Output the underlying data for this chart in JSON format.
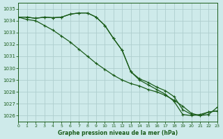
{
  "title": "Graphe pression niveau de la mer (hPa)",
  "background_color": "#ceeaea",
  "grid_color": "#aecece",
  "line_color": "#1a5c1a",
  "xlim": [
    0,
    23
  ],
  "ylim": [
    1025.5,
    1035.5
  ],
  "yticks": [
    1026,
    1027,
    1028,
    1029,
    1030,
    1031,
    1032,
    1033,
    1034,
    1035
  ],
  "xticks": [
    0,
    1,
    2,
    3,
    4,
    5,
    6,
    7,
    8,
    9,
    10,
    11,
    12,
    13,
    14,
    15,
    16,
    17,
    18,
    19,
    20,
    21,
    22,
    23
  ],
  "series1_x": [
    0,
    1,
    2,
    3,
    4,
    5,
    6,
    7,
    8,
    9,
    10,
    11,
    12,
    13,
    14,
    15,
    16,
    17,
    18,
    19,
    20,
    21,
    22,
    23
  ],
  "series1_y": [
    1034.3,
    1034.3,
    1034.2,
    1034.3,
    1034.25,
    1034.3,
    1034.55,
    1034.65,
    1034.65,
    1034.3,
    1033.6,
    1032.5,
    1031.5,
    1029.7,
    1029.0,
    1028.6,
    1028.2,
    1027.8,
    1027.2,
    1026.1,
    1026.0,
    1026.1,
    1026.3,
    1026.4
  ],
  "series2_x": [
    0,
    1,
    2,
    3,
    4,
    5,
    6,
    7,
    8,
    9,
    10,
    11,
    12,
    13,
    14,
    15,
    16,
    17,
    18,
    19,
    20,
    21,
    22,
    23
  ],
  "series2_y": [
    1034.3,
    1034.1,
    1034.0,
    1033.6,
    1033.2,
    1032.7,
    1032.2,
    1031.6,
    1031.0,
    1030.4,
    1029.9,
    1029.4,
    1029.0,
    1028.7,
    1028.5,
    1028.2,
    1028.0,
    1027.7,
    1027.3,
    1026.8,
    1026.2,
    1026.0,
    1026.1,
    1026.7
  ],
  "series3_x": [
    0,
    1,
    2,
    3,
    4,
    5,
    6,
    7,
    8,
    9,
    10,
    11,
    12,
    13,
    14,
    15,
    16,
    17,
    18,
    19,
    20,
    21,
    22,
    23
  ],
  "series3_y": [
    1034.3,
    1034.3,
    1034.2,
    1034.3,
    1034.25,
    1034.3,
    1034.55,
    1034.65,
    1034.65,
    1034.3,
    1033.6,
    1032.5,
    1031.5,
    1029.7,
    1029.1,
    1028.8,
    1028.4,
    1028.1,
    1027.6,
    1026.5,
    1026.1,
    1026.0,
    1026.3,
    1026.4
  ]
}
